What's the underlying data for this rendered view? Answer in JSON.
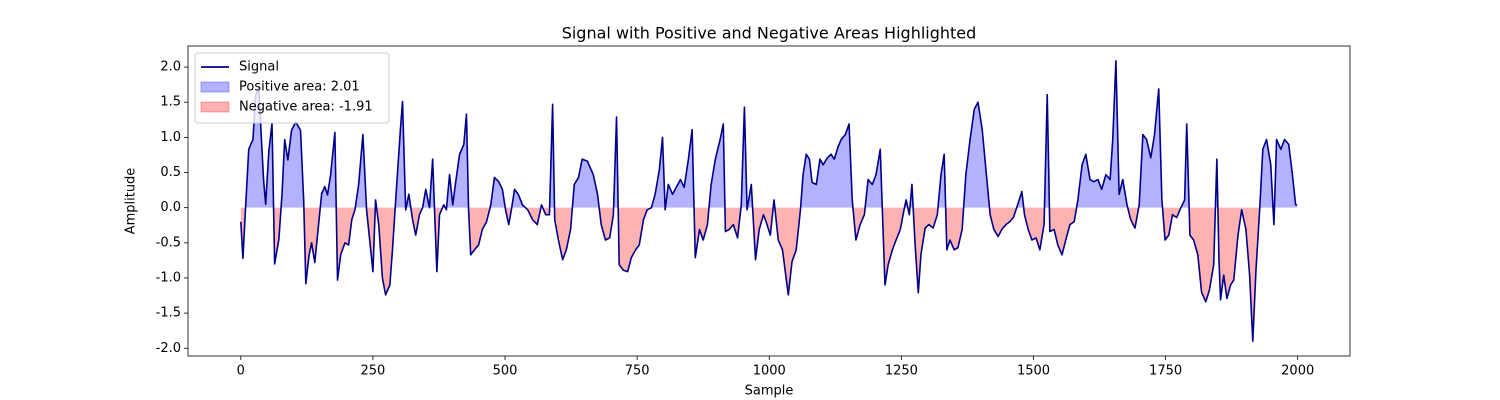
{
  "chart_data": {
    "type": "line",
    "title": "Signal with Positive and Negative Areas Highlighted",
    "xlabel": "Sample",
    "ylabel": "Amplitude",
    "x": [
      0,
      4,
      9,
      15,
      23,
      28,
      34,
      40,
      43,
      47,
      53,
      59,
      64,
      72,
      78,
      83,
      89,
      96,
      104,
      113,
      119,
      123,
      129,
      134,
      140,
      147,
      153,
      159,
      164,
      170,
      178,
      183,
      189,
      197,
      204,
      210,
      216,
      223,
      231,
      238,
      250,
      255,
      261,
      268,
      274,
      282,
      287,
      295,
      302,
      306,
      312,
      318,
      325,
      331,
      338,
      344,
      350,
      357,
      363,
      371,
      376,
      384,
      389,
      395,
      401,
      406,
      414,
      422,
      427,
      431,
      435,
      442,
      450,
      457,
      465,
      473,
      480,
      488,
      495,
      501,
      507,
      512,
      518,
      525,
      533,
      543,
      552,
      561,
      569,
      577,
      584,
      590,
      594,
      601,
      609,
      616,
      624,
      631,
      639,
      646,
      656,
      667,
      675,
      682,
      690,
      698,
      705,
      711,
      716,
      724,
      732,
      739,
      747,
      754,
      762,
      769,
      777,
      784,
      792,
      798,
      803,
      809,
      817,
      824,
      832,
      839,
      847,
      854,
      860,
      868,
      875,
      883,
      890,
      898,
      907,
      913,
      917,
      924,
      932,
      940,
      947,
      953,
      958,
      966,
      974,
      981,
      989,
      994,
      1002,
      1009,
      1017,
      1025,
      1030,
      1036,
      1043,
      1051,
      1059,
      1064,
      1070,
      1076,
      1081,
      1089,
      1096,
      1102,
      1110,
      1117,
      1123,
      1130,
      1136,
      1144,
      1151,
      1157,
      1164,
      1172,
      1180,
      1187,
      1195,
      1202,
      1210,
      1214,
      1219,
      1225,
      1233,
      1240,
      1248,
      1255,
      1259,
      1265,
      1270,
      1276,
      1282,
      1287,
      1295,
      1302,
      1310,
      1318,
      1325,
      1331,
      1336,
      1342,
      1350,
      1357,
      1365,
      1372,
      1380,
      1388,
      1395,
      1403,
      1410,
      1418,
      1425,
      1433,
      1440,
      1448,
      1455,
      1462,
      1470,
      1478,
      1483,
      1490,
      1497,
      1505,
      1512,
      1520,
      1526,
      1531,
      1539,
      1546,
      1554,
      1561,
      1569,
      1577,
      1584,
      1592,
      1599,
      1607,
      1614,
      1622,
      1629,
      1637,
      1645,
      1650,
      1656,
      1662,
      1669,
      1677,
      1684,
      1692,
      1700,
      1707,
      1714,
      1722,
      1729,
      1737,
      1743,
      1749,
      1756,
      1763,
      1771,
      1779,
      1786,
      1790,
      1796,
      1803,
      1811,
      1818,
      1826,
      1833,
      1841,
      1847,
      1851,
      1854,
      1860,
      1866,
      1873,
      1879,
      1887,
      1894,
      1902,
      1909,
      1915,
      1921,
      1928,
      1934,
      1941,
      1949,
      1955,
      1960,
      1968,
      1975,
      1983,
      1990,
      1996,
      1999
    ],
    "series": [
      {
        "name": "Signal",
        "color": "#00008b",
        "values": [
          -0.2,
          -0.72,
          0,
          0.83,
          0.97,
          1.6,
          1.7,
          0.83,
          0.4,
          0.05,
          0.8,
          1.2,
          -0.8,
          -0.45,
          0.2,
          0.97,
          0.68,
          1.1,
          1.22,
          1.1,
          0.1,
          -1.08,
          -0.68,
          -0.5,
          -0.78,
          -0.25,
          0.2,
          0.3,
          0.18,
          0.47,
          1.07,
          -1.03,
          -0.67,
          -0.5,
          -0.53,
          -0.17,
          -0.03,
          0.33,
          1.04,
          -0.03,
          -0.91,
          0.11,
          -0.24,
          -1.0,
          -1.24,
          -1.1,
          -0.6,
          0.33,
          1.11,
          1.51,
          -0.03,
          0.19,
          -0.17,
          -0.39,
          -0.1,
          0,
          0.26,
          0,
          0.69,
          -0.91,
          -0.1,
          0.04,
          -0.03,
          0.47,
          0.04,
          0.33,
          0.76,
          0.9,
          1.33,
          -0.03,
          -0.67,
          -0.6,
          -0.53,
          -0.31,
          -0.2,
          0.04,
          0.43,
          0.37,
          0.26,
          -0.03,
          -0.24,
          -0.03,
          0.26,
          0.19,
          0.04,
          -0.03,
          -0.17,
          -0.24,
          0.04,
          -0.1,
          -0.1,
          1.47,
          -0.17,
          -0.46,
          -0.74,
          -0.6,
          -0.31,
          0.33,
          0.43,
          0.69,
          0.66,
          0.47,
          0.19,
          -0.24,
          -0.46,
          -0.43,
          -0.1,
          1.29,
          -0.81,
          -0.89,
          -0.91,
          -0.71,
          -0.6,
          -0.53,
          -0.17,
          -0.03,
          0,
          0.19,
          0.54,
          1.0,
          -0.03,
          0.33,
          0.19,
          0.29,
          0.4,
          0.29,
          0.69,
          1.11,
          -0.71,
          -0.31,
          -0.46,
          -0.24,
          0.33,
          0.69,
          0.97,
          1.19,
          -0.34,
          -0.31,
          -0.24,
          -0.43,
          0.04,
          1.43,
          -0.03,
          0.33,
          -0.74,
          -0.31,
          -0.1,
          -0.2,
          -0.39,
          0.11,
          -0.46,
          -0.6,
          -0.89,
          -1.24,
          -0.77,
          -0.6,
          -0.03,
          0.47,
          0.76,
          0.69,
          0.36,
          0.33,
          0.69,
          0.61,
          0.71,
          0.76,
          0.69,
          0.86,
          0.97,
          1.04,
          1.19,
          0.11,
          -0.46,
          -0.24,
          -0.1,
          0.4,
          0.33,
          0.47,
          0.83,
          -0.03,
          -1.1,
          -0.81,
          -0.6,
          -0.46,
          -0.31,
          -0.03,
          0.11,
          -0.1,
          0.33,
          -0.53,
          -1.21,
          -0.67,
          -0.29,
          -0.24,
          -0.29,
          -0.1,
          0.47,
          0.76,
          -0.6,
          -0.46,
          -0.6,
          -0.57,
          -0.31,
          0.47,
          0.97,
          1.4,
          1.5,
          1.11,
          0.54,
          -0.1,
          -0.31,
          -0.41,
          -0.31,
          -0.24,
          -0.2,
          -0.14,
          0.04,
          0.23,
          -0.1,
          -0.31,
          -0.46,
          -0.43,
          -0.6,
          -0.24,
          1.61,
          -0.34,
          -0.31,
          -0.53,
          -0.67,
          -0.46,
          -0.24,
          -0.2,
          0.11,
          0.61,
          0.76,
          0.4,
          0.37,
          0.4,
          0.26,
          0.47,
          0.4,
          0.97,
          2.09,
          0.19,
          0.4,
          0.04,
          -0.17,
          -0.29,
          0.04,
          1.04,
          0.97,
          0.71,
          1.04,
          1.69,
          0.11,
          -0.46,
          -0.39,
          -0.1,
          -0.14,
          0,
          0.11,
          1.19,
          -0.39,
          -0.46,
          -0.67,
          -1.2,
          -1.34,
          -1.17,
          -0.81,
          0.69,
          -0.74,
          -1.31,
          -0.96,
          -1.29,
          -1.1,
          -1.03,
          -0.39,
          -0.03,
          -0.31,
          -0.96,
          -1.9,
          -0.89,
          -0.03,
          0.83,
          0.97,
          0.61,
          -0.24,
          0.97,
          0.83,
          0.97,
          0.9,
          0.47,
          0.04,
          0.04
        ]
      }
    ],
    "fills": [
      {
        "name": "Positive area: 2.01",
        "color": "#0000ff",
        "alpha": 0.3
      },
      {
        "name": "Negative area: -1.91",
        "color": "#ff0000",
        "alpha": 0.3
      }
    ],
    "xlim": [
      -99.95,
      2098.95
    ],
    "ylim": [
      -2.11,
      2.3
    ],
    "xticks": [
      0,
      250,
      500,
      750,
      1000,
      1250,
      1500,
      1750,
      2000
    ],
    "yticks": [
      {
        "value": -2,
        "label": "-2.0"
      },
      -1.5,
      {
        "value": -1,
        "label": "-1.0"
      },
      -0.5,
      {
        "value": 0,
        "label": "0.0"
      },
      0.5,
      {
        "value": 1,
        "label": "1.0"
      },
      1.5,
      {
        "value": 2,
        "label": "2.0"
      }
    ],
    "legend": "upper left",
    "grid": false
  }
}
